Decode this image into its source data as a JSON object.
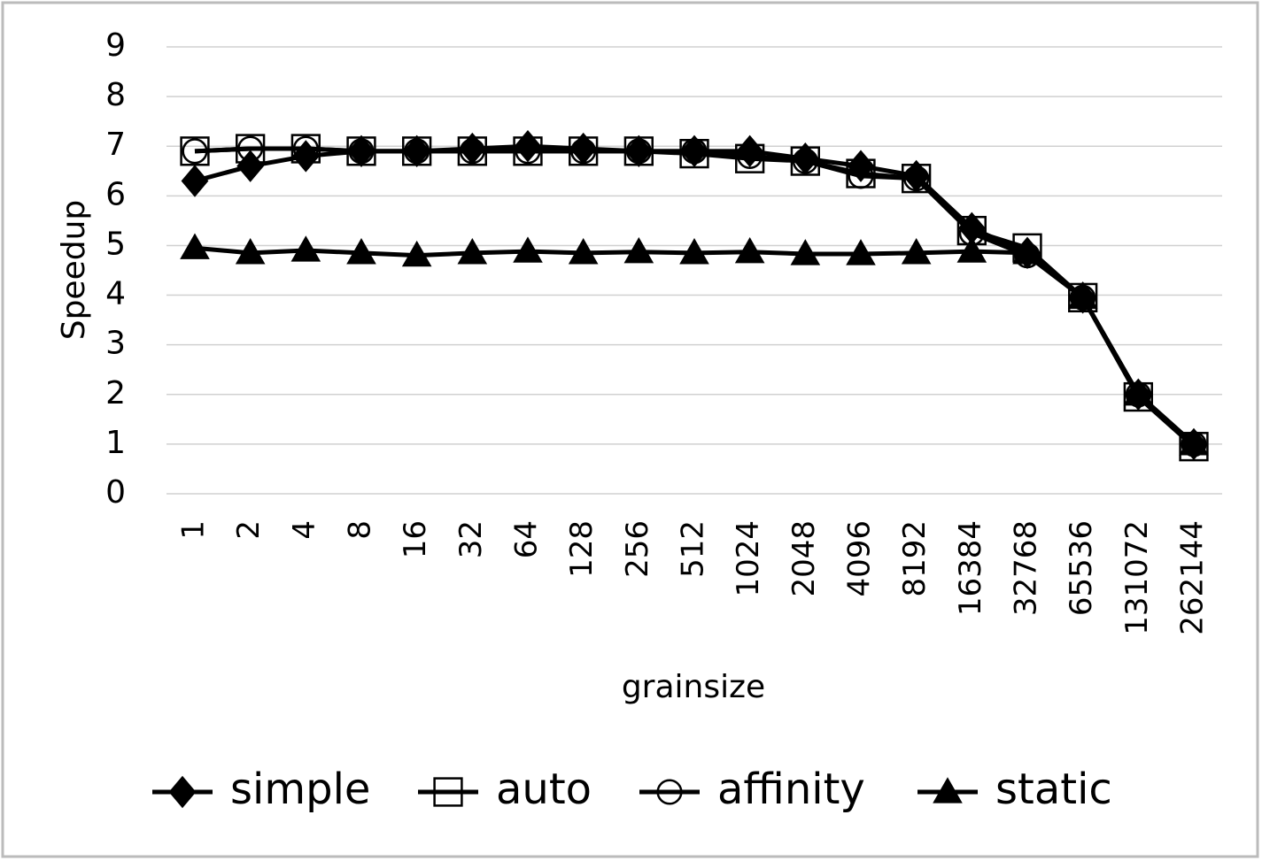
{
  "chart_data": {
    "type": "line",
    "y_label": "Speedup",
    "x_label": "grainsize",
    "categories": [
      "1",
      "2",
      "4",
      "8",
      "16",
      "32",
      "64",
      "128",
      "256",
      "512",
      "1024",
      "2048",
      "4096",
      "8192",
      "16384",
      "32768",
      "65536",
      "131072",
      "262144"
    ],
    "ylim": [
      0,
      9
    ],
    "yticks": [
      0,
      1,
      2,
      3,
      4,
      5,
      6,
      7,
      8,
      9
    ],
    "grid": true,
    "legend": "bottom",
    "series": [
      {
        "name": "simple",
        "color": "#000000",
        "marker": "diamond",
        "values": [
          6.3,
          6.6,
          6.8,
          6.9,
          6.9,
          6.95,
          7.0,
          6.95,
          6.9,
          6.9,
          6.9,
          6.75,
          6.6,
          6.4,
          5.35,
          4.85,
          3.95,
          2.0,
          1.0
        ]
      },
      {
        "name": "auto",
        "color": "#000000",
        "marker": "square",
        "values": [
          6.9,
          6.95,
          6.95,
          6.9,
          6.9,
          6.9,
          6.9,
          6.9,
          6.9,
          6.85,
          6.75,
          6.7,
          6.45,
          6.35,
          5.3,
          4.95,
          3.95,
          1.95,
          0.95
        ]
      },
      {
        "name": "affinity",
        "color": "#000000",
        "marker": "circle",
        "values": [
          6.9,
          6.95,
          6.95,
          6.9,
          6.9,
          6.9,
          6.9,
          6.9,
          6.9,
          6.9,
          6.8,
          6.7,
          6.4,
          6.35,
          5.25,
          4.8,
          3.95,
          2.0,
          1.0
        ]
      },
      {
        "name": "static",
        "color": "#000000",
        "marker": "triangle",
        "values": [
          4.95,
          4.85,
          4.9,
          4.85,
          4.8,
          4.85,
          4.88,
          4.85,
          4.87,
          4.85,
          4.87,
          4.83,
          4.83,
          4.85,
          4.88,
          4.85,
          3.95,
          2.0,
          1.0
        ]
      }
    ]
  }
}
